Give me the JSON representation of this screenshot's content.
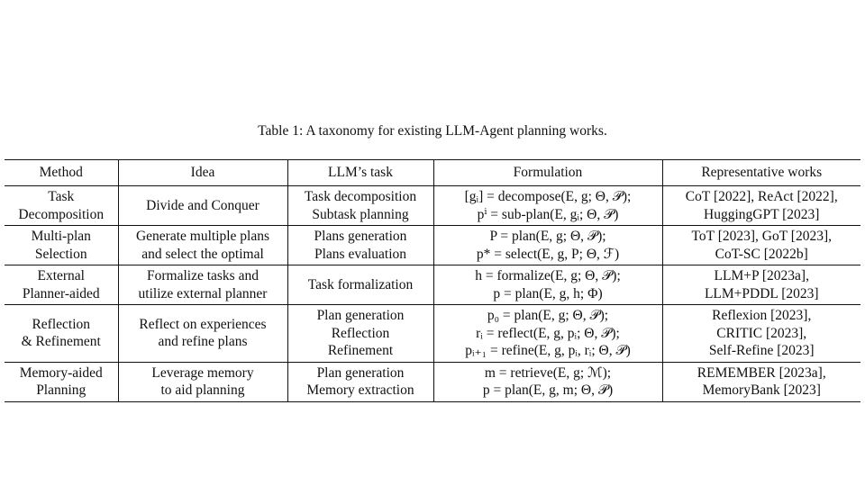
{
  "caption": "Table 1: A taxonomy for existing LLM-Agent planning works.",
  "headers": {
    "method": "Method",
    "idea": "Idea",
    "task": "LLM’s task",
    "formulation": "Formulation",
    "works": "Representative works"
  },
  "rows": [
    {
      "method": [
        "Task",
        "Decomposition"
      ],
      "idea": [
        "Divide and Conquer"
      ],
      "task": [
        "Task decomposition",
        "Subtask planning"
      ],
      "formulation": [
        "[gᵢ] = decompose(E, g; Θ, 𝒫);",
        "pⁱ = sub-plan(E, gᵢ; Θ, 𝒫)"
      ],
      "works": [
        "CoT [2022], ReAct [2022],",
        "HuggingGPT [2023]"
      ]
    },
    {
      "method": [
        "Multi-plan",
        "Selection"
      ],
      "idea": [
        "Generate multiple plans",
        "and select the optimal"
      ],
      "task": [
        "Plans generation",
        "Plans evaluation"
      ],
      "formulation": [
        "P = plan(E, g; Θ, 𝒫);",
        "p* = select(E, g, P; Θ, ℱ)"
      ],
      "works": [
        "ToT [2023], GoT [2023],",
        "CoT-SC [2022b]"
      ]
    },
    {
      "method": [
        "External",
        "Planner-aided"
      ],
      "idea": [
        "Formalize tasks and",
        "utilize external planner"
      ],
      "task": [
        "Task formalization"
      ],
      "formulation": [
        "h = formalize(E, g; Θ, 𝒫);",
        "p = plan(E, g, h; Φ)"
      ],
      "works": [
        "LLM+P [2023a],",
        "LLM+PDDL [2023]"
      ]
    },
    {
      "method": [
        "Reflection",
        "& Refinement"
      ],
      "idea": [
        "Reflect on experiences",
        "and refine plans"
      ],
      "task": [
        "Plan generation",
        "Reflection",
        "Refinement"
      ],
      "formulation": [
        "p₀ = plan(E, g; Θ, 𝒫);",
        "rᵢ = reflect(E, g, pᵢ; Θ, 𝒫);",
        "pᵢ₊₁ = refine(E, g, pᵢ, rᵢ; Θ, 𝒫)"
      ],
      "works": [
        "Reflexion [2023],",
        "CRITIC [2023],",
        "Self-Refine [2023]"
      ]
    },
    {
      "method": [
        "Memory-aided",
        "Planning"
      ],
      "idea": [
        "Leverage memory",
        "to aid planning"
      ],
      "task": [
        "Plan generation",
        "Memory extraction"
      ],
      "formulation": [
        "m = retrieve(E, g; ℳ);",
        "p = plan(E, g, m; Θ, 𝒫)"
      ],
      "works": [
        "REMEMBER [2023a],",
        "MemoryBank [2023]"
      ]
    }
  ]
}
